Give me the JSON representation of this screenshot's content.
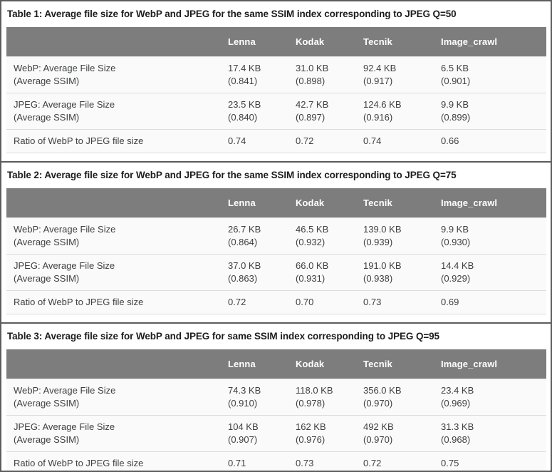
{
  "colors": {
    "header_bg": "#7d7d7d",
    "header_text": "#ffffff",
    "title_text": "#1d1d1d",
    "body_text": "#3e4042",
    "row_bg": "#fafafa",
    "row_divider": "#dcdcdc",
    "section_border": "#5c5c5c"
  },
  "tables": [
    {
      "title": "Table 1: Average file size for WebP and JPEG for the same SSIM index corresponding to JPEG Q=50",
      "columns": [
        "Lenna",
        "Kodak",
        "Tecnik",
        "Image_crawl"
      ],
      "rows": [
        {
          "label_line1": "WebP: Average File Size",
          "label_line2": "(Average SSIM)",
          "values_line1": [
            "17.4 KB",
            "31.0 KB",
            "92.4 KB",
            "6.5 KB"
          ],
          "values_line2": [
            "(0.841)",
            "(0.898)",
            "(0.917)",
            "(0.901)"
          ]
        },
        {
          "label_line1": "JPEG: Average File Size",
          "label_line2": "(Average SSIM)",
          "values_line1": [
            "23.5 KB",
            "42.7 KB",
            "124.6 KB",
            "9.9 KB"
          ],
          "values_line2": [
            "(0.840)",
            "(0.897)",
            "(0.916)",
            "(0.899)"
          ]
        },
        {
          "label_line1": "Ratio of WebP to JPEG file size",
          "label_line2": "",
          "values_line1": [
            "0.74",
            "0.72",
            "0.74",
            "0.66"
          ],
          "values_line2": [
            "",
            "",
            "",
            ""
          ]
        }
      ]
    },
    {
      "title": "Table 2: Average file size for WebP and JPEG for the same SSIM index corresponding to JPEG Q=75",
      "columns": [
        "Lenna",
        "Kodak",
        "Tecnik",
        "Image_crawl"
      ],
      "rows": [
        {
          "label_line1": "WebP: Average File Size",
          "label_line2": "(Average SSIM)",
          "values_line1": [
            "26.7 KB",
            "46.5 KB",
            "139.0 KB",
            "9.9 KB"
          ],
          "values_line2": [
            "(0.864)",
            "(0.932)",
            "(0.939)",
            "(0.930)"
          ]
        },
        {
          "label_line1": "JPEG: Average File Size",
          "label_line2": "(Average SSIM)",
          "values_line1": [
            "37.0 KB",
            "66.0 KB",
            "191.0 KB",
            "14.4 KB"
          ],
          "values_line2": [
            "(0.863)",
            "(0.931)",
            "(0.938)",
            "(0.929)"
          ]
        },
        {
          "label_line1": "Ratio of WebP to JPEG file size",
          "label_line2": "",
          "values_line1": [
            "0.72",
            "0.70",
            "0.73",
            "0.69"
          ],
          "values_line2": [
            "",
            "",
            "",
            ""
          ]
        }
      ]
    },
    {
      "title": "Table 3: Average file size for WebP and JPEG for same SSIM index corresponding to JPEG Q=95",
      "columns": [
        "Lenna",
        "Kodak",
        "Tecnik",
        "Image_crawl"
      ],
      "rows": [
        {
          "label_line1": "WebP: Average File Size",
          "label_line2": "(Average SSIM)",
          "values_line1": [
            "74.3 KB",
            "118.0 KB",
            "356.0 KB",
            "23.4 KB"
          ],
          "values_line2": [
            "(0.910)",
            "(0.978)",
            "(0.970)",
            "(0.969)"
          ]
        },
        {
          "label_line1": "JPEG: Average File Size",
          "label_line2": "(Average SSIM)",
          "values_line1": [
            "104 KB",
            "162 KB",
            "492 KB",
            "31.3 KB"
          ],
          "values_line2": [
            "(0.907)",
            "(0.976)",
            "(0.970)",
            "(0.968)"
          ]
        },
        {
          "label_line1": "Ratio of WebP to JPEG file size",
          "label_line2": "",
          "values_line1": [
            "0.71",
            "0.73",
            "0.72",
            "0.75"
          ],
          "values_line2": [
            "",
            "",
            "",
            ""
          ]
        }
      ]
    }
  ]
}
